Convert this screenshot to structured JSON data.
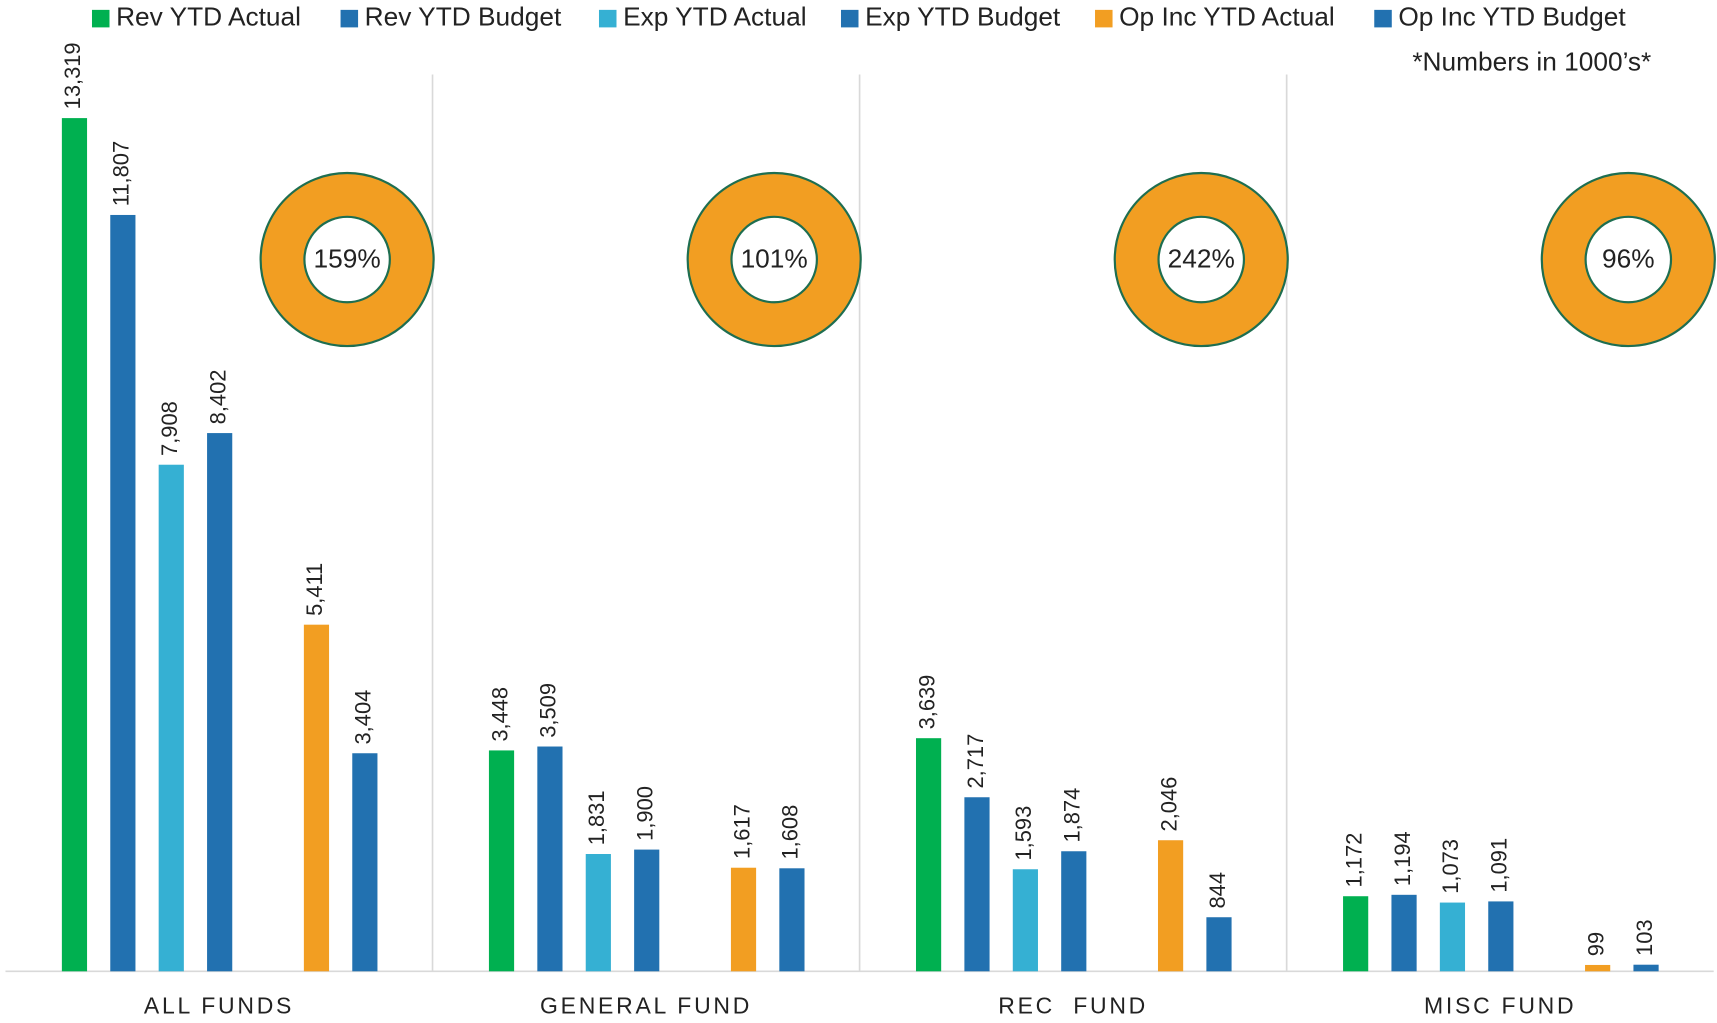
{
  "chart_data": {
    "type": "bar",
    "note": "*Numbers in 1000’s*",
    "categories": [
      "ALL FUNDS",
      "GENERAL FUND",
      "REC  FUND",
      "MISC FUND"
    ],
    "series": [
      {
        "name": "Rev YTD Actual",
        "color": "#00b050",
        "values": [
          13319,
          3448,
          3639,
          1172
        ],
        "value_labels": [
          "13,319",
          "3,448",
          "3,639",
          "1,172"
        ]
      },
      {
        "name": "Rev YTD Budget",
        "color": "#2271b0",
        "values": [
          11807,
          3509,
          2717,
          1194
        ],
        "value_labels": [
          "11,807",
          "3,509",
          "2,717",
          "1,194"
        ]
      },
      {
        "name": "Exp YTD Actual",
        "color": "#35b0d3",
        "values": [
          7908,
          1831,
          1593,
          1073
        ],
        "value_labels": [
          "7,908",
          "1,831",
          "1,593",
          "1,073"
        ]
      },
      {
        "name": "Exp YTD Budget",
        "color": "#2271b0",
        "values": [
          8402,
          1900,
          1874,
          1091
        ],
        "value_labels": [
          "8,402",
          "1,900",
          "1,874",
          "1,091"
        ]
      },
      {
        "name": "Op Inc YTD Actual",
        "color": "#f29e22",
        "values": [
          5411,
          1617,
          2046,
          99
        ],
        "value_labels": [
          "5,411",
          "1,617",
          "2,046",
          "99"
        ]
      },
      {
        "name": "Op Inc YTD Budget",
        "color": "#2271b0",
        "values": [
          3404,
          1608,
          844,
          103
        ],
        "value_labels": [
          "3,404",
          "1,608",
          "844",
          "103"
        ]
      }
    ],
    "ratios": {
      "color": "#f29e22",
      "values": [
        159,
        101,
        242,
        96
      ],
      "value_labels": [
        "159%",
        "101%",
        "242%",
        "96%"
      ]
    },
    "ylim": [
      0,
      14000
    ]
  }
}
